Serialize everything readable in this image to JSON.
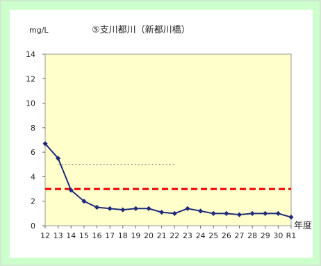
{
  "chart_data": {
    "type": "line",
    "title": "⑤支川都川（新都川橋）",
    "ylabel": "mg/L",
    "xlabel": "年度",
    "ylim": [
      0,
      14
    ],
    "yticks": [
      0,
      2,
      4,
      6,
      8,
      10,
      12,
      14
    ],
    "grid": false,
    "categories": [
      "12",
      "13",
      "14",
      "15",
      "16",
      "17",
      "18",
      "19",
      "20",
      "21",
      "22",
      "23",
      "24",
      "25",
      "26",
      "27",
      "28",
      "29",
      "30",
      "R1"
    ],
    "series": [
      {
        "values": [
          6.7,
          5.5,
          2.9,
          2.0,
          1.5,
          1.4,
          1.3,
          1.4,
          1.4,
          1.1,
          1.0,
          1.4,
          1.2,
          1.0,
          1.0,
          0.9,
          1.0,
          1.0,
          1.0,
          0.7
        ],
        "color": "#1f2a7a",
        "marker": "diamond"
      }
    ],
    "reference_lines": [
      {
        "value": 3,
        "style": "dashed",
        "color": "#ee0000",
        "x_from": "12",
        "x_to": "R1"
      },
      {
        "value": 5,
        "style": "dotted",
        "color": "#666666",
        "x_from": "13",
        "x_to": "22"
      }
    ],
    "plot_background": "#ffffcc",
    "frame_background": "#ccffcc"
  }
}
